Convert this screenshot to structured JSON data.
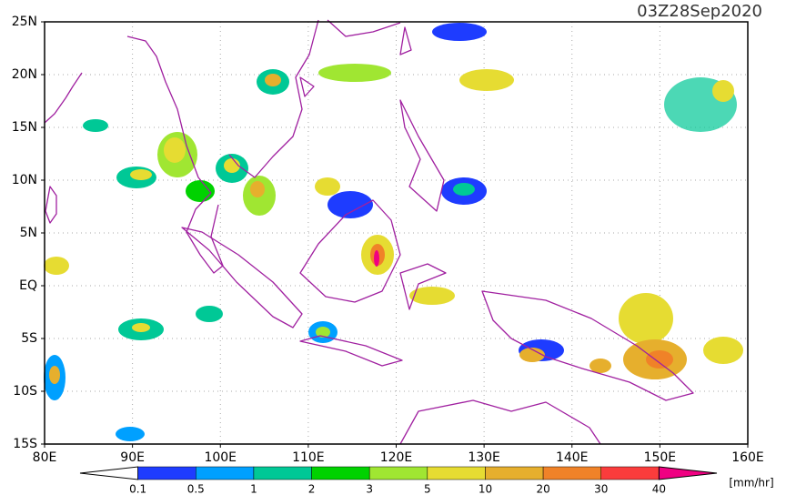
{
  "map": {
    "title": "03Z28Sep2020",
    "lonlim": [
      80,
      160
    ],
    "latlim": [
      -15,
      25
    ],
    "lon_ticks": [
      {
        "value": 80,
        "label": "80E"
      },
      {
        "value": 90,
        "label": "90E"
      },
      {
        "value": 100,
        "label": "100E"
      },
      {
        "value": 110,
        "label": "110E"
      },
      {
        "value": 120,
        "label": "120E"
      },
      {
        "value": 130,
        "label": "130E"
      },
      {
        "value": 140,
        "label": "140E"
      },
      {
        "value": 150,
        "label": "150E"
      },
      {
        "value": 160,
        "label": "160E"
      }
    ],
    "lat_ticks": [
      {
        "value": -15,
        "label": "15S"
      },
      {
        "value": -10,
        "label": "10S"
      },
      {
        "value": -5,
        "label": "5S"
      },
      {
        "value": 0,
        "label": "EQ"
      },
      {
        "value": 5,
        "label": "5N"
      },
      {
        "value": 10,
        "label": "10N"
      },
      {
        "value": 15,
        "label": "15N"
      },
      {
        "value": 20,
        "label": "20N"
      },
      {
        "value": 25,
        "label": "25N"
      }
    ],
    "grid": true,
    "colorbar": {
      "levels": [
        0.1,
        0.5,
        1,
        2,
        3,
        5,
        10,
        20,
        30,
        40
      ],
      "colors": [
        "#ffffff",
        "#1e3cff",
        "#00a0ff",
        "#00c896",
        "#00d200",
        "#a0e632",
        "#e6dc32",
        "#e6af2d",
        "#f08228",
        "#fa3c3c",
        "#f00082"
      ],
      "unit": "[mm/hr]"
    }
  }
}
